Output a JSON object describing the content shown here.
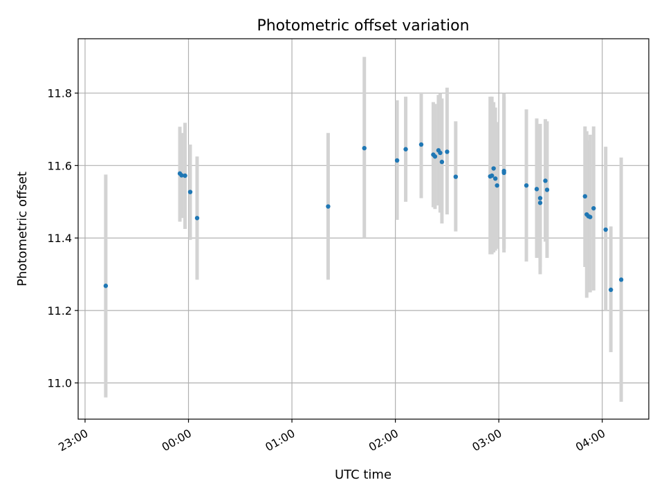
{
  "chart_data": {
    "type": "scatter",
    "title": "Photometric offset variation",
    "xlabel": "UTC time",
    "ylabel": "Photometric offset",
    "x_unit": "UTC time (hh:mm)",
    "xlim": [
      "22:56",
      "04:27"
    ],
    "ylim": [
      10.9,
      11.95
    ],
    "x_ticks": [
      "23:00",
      "00:00",
      "01:00",
      "02:00",
      "03:00",
      "04:00"
    ],
    "y_ticks": [
      11.0,
      11.2,
      11.4,
      11.6,
      11.8
    ],
    "y_tick_labels": [
      "11.0",
      "11.2",
      "11.4",
      "11.6",
      "11.8"
    ],
    "grid": true,
    "legend": "none",
    "colors": {
      "points": "#1f77b4",
      "errorbars": "#d3d3d3",
      "grid": "#b0b0b0"
    },
    "series": [
      {
        "points": [
          {
            "x": "23:12",
            "y": 11.268,
            "yerr_low": 10.96,
            "yerr_high": 11.575
          },
          {
            "x": "23:55",
            "y": 11.578,
            "yerr_low": 11.445,
            "yerr_high": 11.707
          },
          {
            "x": "23:56",
            "y": 11.573,
            "yerr_low": 11.455,
            "yerr_high": 11.69
          },
          {
            "x": "23:58",
            "y": 11.572,
            "yerr_low": 11.425,
            "yerr_high": 11.718
          },
          {
            "x": "00:01",
            "y": 11.527,
            "yerr_low": 11.395,
            "yerr_high": 11.658
          },
          {
            "x": "00:05",
            "y": 11.455,
            "yerr_low": 11.285,
            "yerr_high": 11.625
          },
          {
            "x": "01:21",
            "y": 11.487,
            "yerr_low": 11.285,
            "yerr_high": 11.69
          },
          {
            "x": "01:42",
            "y": 11.648,
            "yerr_low": 11.4,
            "yerr_high": 11.9
          },
          {
            "x": "02:01",
            "y": 11.614,
            "yerr_low": 11.45,
            "yerr_high": 11.78
          },
          {
            "x": "02:06",
            "y": 11.645,
            "yerr_low": 11.5,
            "yerr_high": 11.79
          },
          {
            "x": "02:15",
            "y": 11.658,
            "yerr_low": 11.51,
            "yerr_high": 11.802
          },
          {
            "x": "02:22",
            "y": 11.63,
            "yerr_low": 11.485,
            "yerr_high": 11.775
          },
          {
            "x": "02:23",
            "y": 11.625,
            "yerr_low": 11.48,
            "yerr_high": 11.77
          },
          {
            "x": "02:25",
            "y": 11.642,
            "yerr_low": 11.49,
            "yerr_high": 11.795
          },
          {
            "x": "02:26",
            "y": 11.635,
            "yerr_low": 11.47,
            "yerr_high": 11.8
          },
          {
            "x": "02:27",
            "y": 11.61,
            "yerr_low": 11.44,
            "yerr_high": 11.785
          },
          {
            "x": "02:30",
            "y": 11.638,
            "yerr_low": 11.465,
            "yerr_high": 11.815
          },
          {
            "x": "02:35",
            "y": 11.569,
            "yerr_low": 11.418,
            "yerr_high": 11.722
          },
          {
            "x": "02:55",
            "y": 11.57,
            "yerr_low": 11.355,
            "yerr_high": 11.79
          },
          {
            "x": "02:56",
            "y": 11.572,
            "yerr_low": 11.355,
            "yerr_high": 11.79
          },
          {
            "x": "02:57",
            "y": 11.592,
            "yerr_low": 11.36,
            "yerr_high": 11.775
          },
          {
            "x": "02:58",
            "y": 11.564,
            "yerr_low": 11.365,
            "yerr_high": 11.76
          },
          {
            "x": "02:59",
            "y": 11.545,
            "yerr_low": 11.37,
            "yerr_high": 11.72
          },
          {
            "x": "03:03",
            "y": 11.585,
            "yerr_low": 11.36,
            "yerr_high": 11.8
          },
          {
            "x": "03:03",
            "y": 11.58,
            "yerr_low": 11.37,
            "yerr_high": 11.79
          },
          {
            "x": "03:16",
            "y": 11.545,
            "yerr_low": 11.335,
            "yerr_high": 11.755
          },
          {
            "x": "03:22",
            "y": 11.535,
            "yerr_low": 11.345,
            "yerr_high": 11.73
          },
          {
            "x": "03:24",
            "y": 11.51,
            "yerr_low": 11.3,
            "yerr_high": 11.715
          },
          {
            "x": "03:24",
            "y": 11.497,
            "yerr_low": 11.32,
            "yerr_high": 11.7
          },
          {
            "x": "03:27",
            "y": 11.558,
            "yerr_low": 11.39,
            "yerr_high": 11.728
          },
          {
            "x": "03:28",
            "y": 11.533,
            "yerr_low": 11.345,
            "yerr_high": 11.722
          },
          {
            "x": "03:50",
            "y": 11.515,
            "yerr_low": 11.32,
            "yerr_high": 11.708
          },
          {
            "x": "03:51",
            "y": 11.465,
            "yerr_low": 11.235,
            "yerr_high": 11.695
          },
          {
            "x": "03:52",
            "y": 11.46,
            "yerr_low": 11.25,
            "yerr_high": 11.67
          },
          {
            "x": "03:53",
            "y": 11.458,
            "yerr_low": 11.25,
            "yerr_high": 11.685
          },
          {
            "x": "03:55",
            "y": 11.482,
            "yerr_low": 11.255,
            "yerr_high": 11.708
          },
          {
            "x": "04:02",
            "y": 11.423,
            "yerr_low": 11.2,
            "yerr_high": 11.652
          },
          {
            "x": "04:05",
            "y": 11.257,
            "yerr_low": 11.085,
            "yerr_high": 11.432
          },
          {
            "x": "04:11",
            "y": 11.285,
            "yerr_low": 10.948,
            "yerr_high": 11.622
          }
        ]
      }
    ]
  }
}
